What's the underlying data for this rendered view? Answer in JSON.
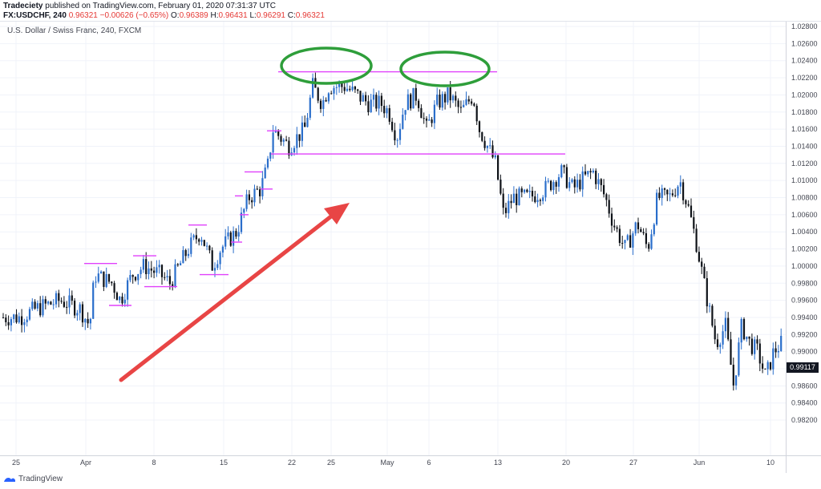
{
  "header": {
    "publisher": "Tradeciety",
    "published_text": " published on TradingView.com, February 01, 2020 07:31:37 UTC",
    "symbol": "FX:USDCHF, 240",
    "last": "0.96321",
    "change": "−0.00626 (−0.65%)",
    "o_label": "O:",
    "o_value": "0.96389",
    "h_label": "H:",
    "h_value": "0.96431",
    "l_label": "L:",
    "l_value": "0.96291",
    "c_label": "C:",
    "c_value": "0.96321"
  },
  "footer": {
    "brand": "TradingView"
  },
  "last_price_label": "0.99117",
  "chart_data": {
    "type": "candlestick",
    "title": "U.S. Dollar / Swiss Franc, 240, FXCM",
    "y_ticks": [
      "1.02800",
      "1.02600",
      "1.02400",
      "1.02200",
      "1.02000",
      "1.01800",
      "1.01600",
      "1.01400",
      "1.01200",
      "1.01000",
      "1.00800",
      "1.00600",
      "1.00400",
      "1.00200",
      "1.00000",
      "0.99800",
      "0.99600",
      "0.99400",
      "0.99200",
      "0.99000",
      "0.98800",
      "0.98600",
      "0.98400",
      "0.98200"
    ],
    "ylim": [
      0.9818,
      1.0289
    ],
    "x_ticks": [
      "25",
      "Apr",
      "8",
      "15",
      "22",
      "25",
      "May",
      "6",
      "13",
      "20",
      "27",
      "Jun",
      "10"
    ],
    "grid": true,
    "path": [
      [
        0,
        0.994
      ],
      [
        25,
        0.994
      ],
      [
        45,
        0.995
      ],
      [
        75,
        0.996
      ],
      [
        100,
        0.995
      ],
      [
        112,
        0.993
      ],
      [
        118,
        0.999
      ],
      [
        140,
        0.998
      ],
      [
        150,
        0.996
      ],
      [
        165,
        0.999
      ],
      [
        180,
        1.0
      ],
      [
        200,
        0.999
      ],
      [
        212,
        0.998
      ],
      [
        235,
        1.002
      ],
      [
        250,
        1.004
      ],
      [
        265,
        1.0
      ],
      [
        275,
        1.002
      ],
      [
        295,
        1.004
      ],
      [
        310,
        1.008
      ],
      [
        325,
        1.009
      ],
      [
        335,
        1.012
      ],
      [
        340,
        1.016
      ],
      [
        360,
        1.014
      ],
      [
        380,
        1.016
      ],
      [
        390,
        1.021
      ],
      [
        402,
        1.019
      ],
      [
        410,
        1.021
      ],
      [
        430,
        1.021
      ],
      [
        445,
        1.02
      ],
      [
        460,
        1.019
      ],
      [
        475,
        1.019
      ],
      [
        485,
        1.018
      ],
      [
        495,
        1.015
      ],
      [
        505,
        1.019
      ],
      [
        520,
        1.02
      ],
      [
        532,
        1.016
      ],
      [
        545,
        1.019
      ],
      [
        560,
        1.02
      ],
      [
        575,
        1.018
      ],
      [
        590,
        1.02
      ],
      [
        598,
        1.016
      ],
      [
        608,
        1.014
      ],
      [
        618,
        1.012
      ],
      [
        628,
        1.006
      ],
      [
        640,
        1.008
      ],
      [
        660,
        1.008
      ],
      [
        680,
        1.009
      ],
      [
        700,
        1.011
      ],
      [
        715,
        1.009
      ],
      [
        725,
        1.01
      ],
      [
        740,
        1.011
      ],
      [
        755,
        1.008
      ],
      [
        765,
        1.005
      ],
      [
        780,
        1.002
      ],
      [
        795,
        1.005
      ],
      [
        808,
        1.002
      ],
      [
        820,
        1.008
      ],
      [
        835,
        1.008
      ],
      [
        848,
        1.01
      ],
      [
        858,
        1.007
      ],
      [
        868,
        1.003
      ],
      [
        880,
        0.997
      ],
      [
        893,
        0.991
      ],
      [
        905,
        0.993
      ],
      [
        915,
        0.986
      ],
      [
        925,
        0.993
      ],
      [
        935,
        0.991
      ],
      [
        945,
        0.99
      ],
      [
        955,
        0.987
      ],
      [
        965,
        0.99
      ],
      [
        975,
        0.991
      ]
    ],
    "annotations": {
      "top_line_price": 1.0227,
      "neckline_price": 1.0131,
      "support_resistance_marks": [
        [
          105,
          146,
          1.0003
        ],
        [
          136,
          164,
          0.9954
        ],
        [
          166,
          195,
          1.0012
        ],
        [
          180,
          221,
          0.9976
        ],
        [
          235,
          258,
          1.0048
        ],
        [
          249,
          285,
          0.999
        ],
        [
          293,
          303,
          1.0082
        ],
        [
          288,
          302,
          1.0028
        ],
        [
          299,
          310,
          1.006
        ],
        [
          305,
          327,
          1.011
        ],
        [
          325,
          340,
          1.009
        ],
        [
          333,
          351,
          1.0158
        ]
      ]
    }
  }
}
